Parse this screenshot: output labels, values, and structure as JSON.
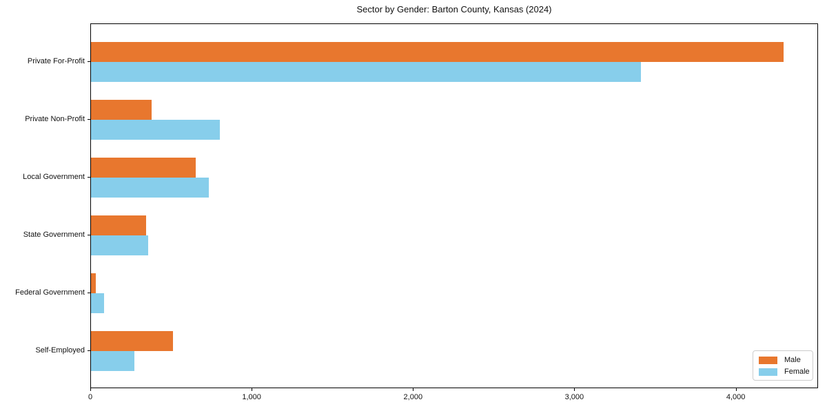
{
  "chart_data": {
    "type": "bar",
    "orientation": "horizontal",
    "title": "Sector by Gender: Barton County, Kansas (2024)",
    "categories": [
      "Private For-Profit",
      "Private Non-Profit",
      "Local Government",
      "State Government",
      "Federal Government",
      "Self-Employed"
    ],
    "series": [
      {
        "name": "Male",
        "color": "#e8772e",
        "values": [
          4290,
          375,
          650,
          340,
          30,
          510
        ]
      },
      {
        "name": "Female",
        "color": "#87ceeb",
        "values": [
          3410,
          800,
          730,
          355,
          80,
          270
        ]
      }
    ],
    "xlabel": "",
    "ylabel": "",
    "xlim": [
      0,
      4510
    ],
    "xticks": [
      {
        "value": 0,
        "label": "0"
      },
      {
        "value": 1000,
        "label": "1,000"
      },
      {
        "value": 2000,
        "label": "2,000"
      },
      {
        "value": 3000,
        "label": "3,000"
      },
      {
        "value": 4000,
        "label": "4,000"
      }
    ],
    "grid": false,
    "legend": {
      "position": "lower right",
      "entries": [
        "Male",
        "Female"
      ]
    },
    "frame_color": "#000000",
    "background_color": "#ffffff"
  }
}
